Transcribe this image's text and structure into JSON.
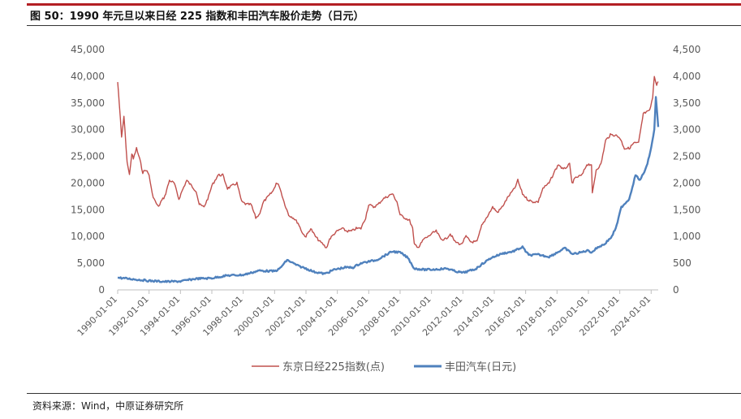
{
  "header": {
    "title": "图 50：1990 年元旦以来日经 225 指数和丰田汽车股价走势（日元）"
  },
  "footer": {
    "source": "资料来源：Wind，中原证券研究所"
  },
  "colors": {
    "accent_bar": "#b31f24",
    "nikkei": "#c0504d",
    "toyota": "#4f81bd",
    "axis_text": "#595959",
    "axis_line": "#bfbfbf"
  },
  "chart_data": {
    "type": "line",
    "title": "",
    "xlabel": "",
    "ylabel": "",
    "y2label": "",
    "grid": false,
    "legend_position": "bottom",
    "x_ticks": [
      "1990-01-01",
      "1992-01-01",
      "1994-01-01",
      "1996-01-01",
      "1998-01-01",
      "2000-01-01",
      "2002-01-01",
      "2004-01-01",
      "2006-01-01",
      "2008-01-01",
      "2010-01-01",
      "2012-01-01",
      "2014-01-01",
      "2016-01-01",
      "2018-01-01",
      "2020-01-01",
      "2022-01-01",
      "2024-01-01"
    ],
    "x_range": [
      1990.0,
      2024.45
    ],
    "ylim": [
      0,
      45000
    ],
    "y_ticks": [
      "0",
      "5,000",
      "10,000",
      "15,000",
      "20,000",
      "25,000",
      "30,000",
      "35,000",
      "40,000",
      "45,000"
    ],
    "y2lim": [
      0,
      4500
    ],
    "y2_ticks": [
      "0",
      "500",
      "1,000",
      "1,500",
      "2,000",
      "2,500",
      "3,000",
      "3,500",
      "4,000",
      "4,500"
    ],
    "series": [
      {
        "name": "东京日经225指数(点)",
        "axis": "left",
        "color": "#c0504d",
        "x": [
          1990.0,
          1990.1,
          1990.25,
          1990.4,
          1990.6,
          1990.75,
          1990.9,
          1991.0,
          1991.2,
          1991.4,
          1991.6,
          1991.8,
          1992.0,
          1992.2,
          1992.4,
          1992.6,
          1992.75,
          1993.0,
          1993.3,
          1993.6,
          1993.9,
          1994.1,
          1994.4,
          1994.7,
          1995.0,
          1995.2,
          1995.5,
          1995.8,
          1996.0,
          1996.4,
          1996.7,
          1997.0,
          1997.3,
          1997.6,
          1997.9,
          1998.2,
          1998.5,
          1998.8,
          1999.0,
          1999.3,
          1999.6,
          1999.9,
          2000.1,
          2000.3,
          2000.6,
          2000.9,
          2001.2,
          2001.5,
          2001.8,
          2002.0,
          2002.3,
          2002.6,
          2002.9,
          2003.1,
          2003.3,
          2003.5,
          2003.8,
          2004.0,
          2004.3,
          2004.6,
          2004.9,
          2005.2,
          2005.5,
          2005.8,
          2006.0,
          2006.3,
          2006.6,
          2006.9,
          2007.2,
          2007.5,
          2007.8,
          2008.0,
          2008.3,
          2008.6,
          2008.8,
          2008.9,
          2009.2,
          2009.5,
          2009.8,
          2010.0,
          2010.3,
          2010.6,
          2010.9,
          2011.2,
          2011.5,
          2011.9,
          2012.2,
          2012.5,
          2012.9,
          2013.2,
          2013.5,
          2013.9,
          2014.2,
          2014.5,
          2014.9,
          2015.3,
          2015.5,
          2015.8,
          2016.1,
          2016.4,
          2016.8,
          2017.1,
          2017.5,
          2017.9,
          2018.1,
          2018.4,
          2018.8,
          2018.95,
          2019.2,
          2019.6,
          2019.9,
          2020.2,
          2020.25,
          2020.5,
          2020.8,
          2021.1,
          2021.4,
          2021.7,
          2022.0,
          2022.3,
          2022.6,
          2022.9,
          2023.2,
          2023.5,
          2023.9,
          2024.1,
          2024.2,
          2024.35,
          2024.45
        ],
        "values": [
          38900,
          35000,
          28500,
          32500,
          24000,
          21500,
          25500,
          24500,
          26500,
          24500,
          22000,
          22500,
          21500,
          18000,
          16500,
          15500,
          16500,
          17500,
          20500,
          20000,
          17000,
          18500,
          20500,
          19500,
          18500,
          16000,
          15500,
          17500,
          19500,
          21500,
          21500,
          19000,
          19500,
          20000,
          16500,
          16000,
          16000,
          13500,
          14000,
          16500,
          17500,
          18500,
          20000,
          19500,
          16500,
          14000,
          13500,
          12500,
          10500,
          10000,
          11500,
          10000,
          9000,
          8500,
          7800,
          9500,
          10500,
          11000,
          11500,
          11000,
          11000,
          11500,
          11500,
          13500,
          16000,
          15500,
          16000,
          17000,
          17500,
          18000,
          16500,
          14000,
          13500,
          13000,
          11500,
          8500,
          8000,
          9500,
          10000,
          10500,
          11000,
          9500,
          9500,
          10500,
          9000,
          8500,
          10000,
          9000,
          9000,
          12000,
          13500,
          15500,
          14500,
          15500,
          17500,
          19000,
          20500,
          18000,
          17000,
          16500,
          16500,
          19000,
          20000,
          22500,
          23500,
          22500,
          23500,
          20000,
          21000,
          21500,
          23500,
          23500,
          18000,
          22500,
          23500,
          28000,
          29000,
          29000,
          28500,
          26500,
          26500,
          27500,
          27500,
          33000,
          33500,
          36000,
          40000,
          38500,
          39000
        ]
      },
      {
        "name": "丰田汽车(日元)",
        "axis": "right",
        "color": "#4f81bd",
        "x": [
          1990.0,
          1991.0,
          1992.0,
          1993.0,
          1994.0,
          1995.0,
          1996.0,
          1997.0,
          1998.0,
          1999.0,
          2000.0,
          2000.3,
          2000.8,
          2001.5,
          2002.0,
          2002.5,
          2003.2,
          2003.8,
          2004.5,
          2005.0,
          2005.5,
          2006.0,
          2006.5,
          2007.0,
          2007.5,
          2008.0,
          2008.5,
          2008.9,
          2009.5,
          2010.0,
          2010.5,
          2011.0,
          2011.5,
          2012.0,
          2012.8,
          2013.3,
          2013.8,
          2014.5,
          2015.2,
          2015.8,
          2016.2,
          2016.8,
          2017.5,
          2018.0,
          2018.5,
          2019.0,
          2019.5,
          2020.0,
          2020.2,
          2020.6,
          2021.0,
          2021.5,
          2021.8,
          2022.1,
          2022.6,
          2023.0,
          2023.3,
          2023.7,
          2024.0,
          2024.2,
          2024.3,
          2024.45
        ],
        "values": [
          230,
          200,
          170,
          155,
          160,
          210,
          220,
          270,
          280,
          360,
          350,
          390,
          560,
          450,
          400,
          340,
          300,
          380,
          420,
          420,
          500,
          530,
          560,
          640,
          720,
          700,
          600,
          400,
          380,
          380,
          390,
          400,
          350,
          320,
          390,
          500,
          600,
          680,
          720,
          800,
          650,
          660,
          620,
          700,
          780,
          670,
          700,
          740,
          700,
          800,
          850,
          1000,
          1200,
          1550,
          1700,
          2150,
          2050,
          2300,
          2650,
          3000,
          3600,
          3050
        ]
      }
    ]
  }
}
